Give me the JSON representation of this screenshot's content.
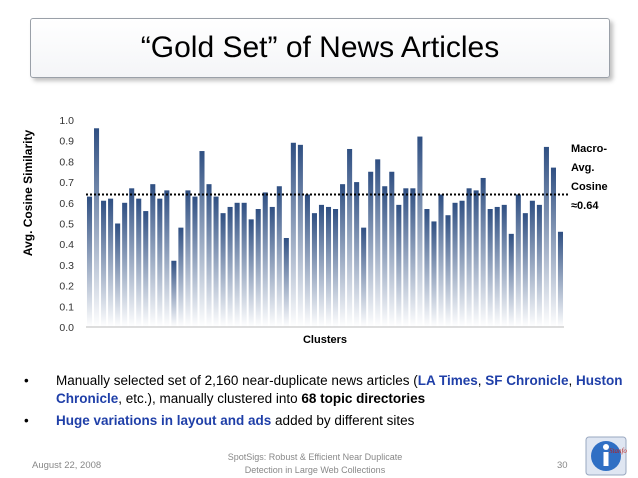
{
  "slide": {
    "title": "“Gold Set” of News Articles",
    "macro_label": [
      "Macro-",
      "Avg.",
      "Cosine",
      "≈0.64"
    ],
    "bullets": [
      {
        "marker": "•",
        "parts": [
          {
            "text": "Manually selected set of 2,160 near-duplicate news articles (",
            "style": "plain"
          },
          {
            "text": "LA Times",
            "style": "blue"
          },
          {
            "text": ", ",
            "style": "plain"
          },
          {
            "text": "SF Chronicle",
            "style": "blue"
          },
          {
            "text": ", ",
            "style": "plain"
          },
          {
            "text": "Huston Chronicle",
            "style": "blue"
          },
          {
            "text": ", etc.), manually clustered into ",
            "style": "plain"
          },
          {
            "text": "68 topic directories",
            "style": "bold"
          }
        ]
      },
      {
        "marker": "•",
        "parts": [
          {
            "text": "Huge variations in layout and ads",
            "style": "blue"
          },
          {
            "text": " added by different sites",
            "style": "plain"
          }
        ]
      }
    ],
    "footer": {
      "date": "August 22, 2008",
      "center_line1": "SpotSigs: Robust & Efficient Near Duplicate",
      "center_line2": "Detection in Large Web Collections",
      "page": "30"
    },
    "logo_text": "Stanford"
  },
  "chart_data": {
    "type": "bar",
    "title": "",
    "xlabel": "Clusters",
    "ylabel": "Avg. Cosine Similarity",
    "ylim": [
      0,
      1.0
    ],
    "yticks": [
      "0.0",
      "0.1",
      "0.2",
      "0.3",
      "0.4",
      "0.5",
      "0.6",
      "0.7",
      "0.8",
      "0.9",
      "1.0"
    ],
    "grid": false,
    "reference_line": {
      "value": 0.64,
      "style": "dotted",
      "color": "#000000"
    },
    "bar_color_top": "#2f4f82",
    "bar_color_bottom": "#ffffff",
    "values": [
      0.63,
      0.96,
      0.61,
      0.62,
      0.5,
      0.6,
      0.67,
      0.62,
      0.56,
      0.69,
      0.62,
      0.66,
      0.32,
      0.48,
      0.66,
      0.63,
      0.85,
      0.69,
      0.63,
      0.55,
      0.58,
      0.6,
      0.6,
      0.52,
      0.57,
      0.65,
      0.58,
      0.68,
      0.43,
      0.89,
      0.88,
      0.64,
      0.55,
      0.59,
      0.58,
      0.57,
      0.69,
      0.86,
      0.7,
      0.48,
      0.75,
      0.81,
      0.68,
      0.75,
      0.59,
      0.67,
      0.67,
      0.92,
      0.57,
      0.51,
      0.64,
      0.54,
      0.6,
      0.61,
      0.67,
      0.66,
      0.72,
      0.57,
      0.58,
      0.59,
      0.45,
      0.64,
      0.55,
      0.61,
      0.59,
      0.87,
      0.77,
      0.46
    ]
  }
}
